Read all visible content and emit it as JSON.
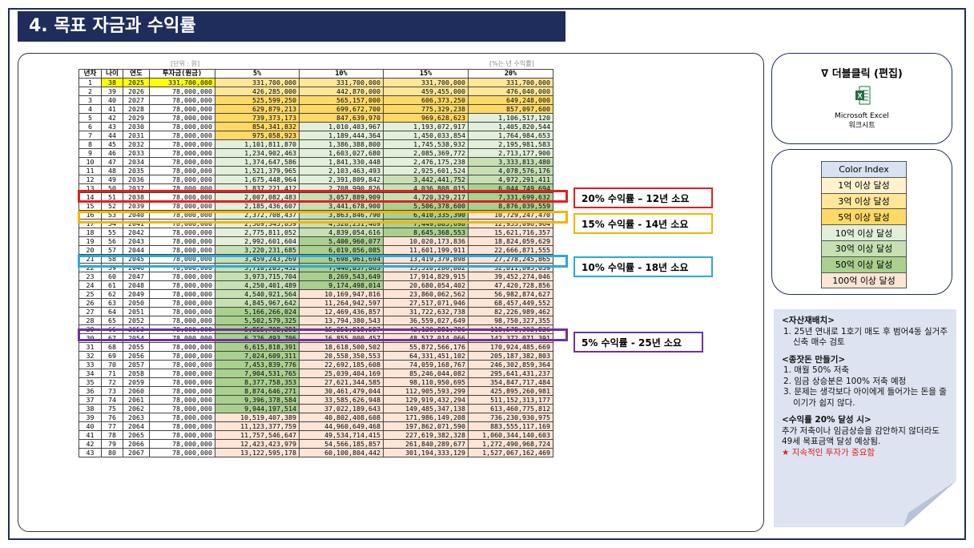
{
  "title": "4. 목표 자금과 수익률",
  "unit_left": "[단위 : 원]",
  "unit_right": "[%는 년 수익률]",
  "headers": [
    "년차",
    "나이",
    "연도",
    "투자금(원금)",
    "5%",
    "10%",
    "15%",
    "20%"
  ],
  "colors": {
    "title_bg": "#1f2d5c",
    "year_yellow": "#ffff00",
    "tier_1": "#fff2cc",
    "tier_3": "#ffe699",
    "tier_5": "#ffd966",
    "tier_10": "#e2efda",
    "tier_30": "#c6e0b4",
    "tier_50": "#a9d08e",
    "tier_100": "#fce4d6",
    "red": "#e02020",
    "orange": "#f4b400",
    "blue": "#2aa8e0",
    "purple": "#7030a0"
  },
  "rows": [
    [
      "1",
      "38",
      "2025",
      "331,700,000",
      "331,700,000",
      "331,700,000",
      "331,700,000",
      "331,700,000"
    ],
    [
      "2",
      "39",
      "2026",
      "78,000,000",
      "426,285,000",
      "442,870,000",
      "459,455,000",
      "476,040,000"
    ],
    [
      "3",
      "40",
      "2027",
      "78,000,000",
      "525,599,250",
      "565,157,000",
      "606,373,250",
      "649,248,000"
    ],
    [
      "4",
      "41",
      "2028",
      "78,000,000",
      "629,879,213",
      "699,672,700",
      "775,329,238",
      "857,097,600"
    ],
    [
      "5",
      "42",
      "2029",
      "78,000,000",
      "739,373,173",
      "847,639,970",
      "969,628,623",
      "1,106,517,120"
    ],
    [
      "6",
      "43",
      "2030",
      "78,000,000",
      "854,341,832",
      "1,010,403,967",
      "1,193,072,917",
      "1,405,820,544"
    ],
    [
      "7",
      "44",
      "2031",
      "78,000,000",
      "975,058,923",
      "1,189,444,364",
      "1,450,033,854",
      "1,764,984,653"
    ],
    [
      "8",
      "45",
      "2032",
      "78,000,000",
      "1,101,811,870",
      "1,386,388,800",
      "1,745,538,932",
      "2,195,981,583"
    ],
    [
      "9",
      "46",
      "2033",
      "78,000,000",
      "1,234,902,463",
      "1,603,027,680",
      "2,085,369,772",
      "2,713,177,900"
    ],
    [
      "10",
      "47",
      "2034",
      "78,000,000",
      "1,374,647,586",
      "1,841,330,448",
      "2,476,175,238",
      "3,333,813,480"
    ],
    [
      "11",
      "48",
      "2035",
      "78,000,000",
      "1,521,379,965",
      "2,103,463,493",
      "2,925,601,524",
      "4,078,576,176"
    ],
    [
      "12",
      "49",
      "2036",
      "78,000,000",
      "1,675,448,964",
      "2,391,809,842",
      "3,442,441,752",
      "4,972,291,411"
    ],
    [
      "13",
      "50",
      "2037",
      "78,000,000",
      "1,837,221,412",
      "2,708,990,826",
      "4,036,808,015",
      "6,044,749,694"
    ],
    [
      "14",
      "51",
      "2038",
      "78,000,000",
      "2,007,082,483",
      "3,057,889,909",
      "4,720,329,217",
      "7,331,699,632"
    ],
    [
      "15",
      "52",
      "2039",
      "78,000,000",
      "2,185,436,607",
      "3,441,678,900",
      "5,506,378,600",
      "8,876,039,559"
    ],
    [
      "16",
      "53",
      "2040",
      "78,000,000",
      "2,372,708,437",
      "3,863,846,790",
      "6,410,335,390",
      "10,729,247,470"
    ],
    [
      "17",
      "54",
      "2041",
      "78,000,000",
      "2,569,343,859",
      "4,328,231,469",
      "7,449,885,698",
      "12,953,096,964"
    ],
    [
      "18",
      "55",
      "2042",
      "78,000,000",
      "2,775,811,052",
      "4,839,054,616",
      "8,645,368,553",
      "15,621,716,357"
    ],
    [
      "19",
      "56",
      "2043",
      "78,000,000",
      "2,992,601,604",
      "5,400,960,077",
      "10,020,173,836",
      "18,824,059,629"
    ],
    [
      "20",
      "57",
      "2044",
      "78,000,000",
      "3,220,231,685",
      "6,019,056,085",
      "11,601,199,911",
      "22,666,871,555"
    ],
    [
      "21",
      "58",
      "2045",
      "78,000,000",
      "3,459,243,269",
      "6,698,961,694",
      "13,419,379,898",
      "27,278,245,865"
    ],
    [
      "22",
      "59",
      "2046",
      "78,000,000",
      "3,710,205,432",
      "7,446,857,863",
      "15,510,286,882",
      "32,811,895,039"
    ],
    [
      "23",
      "60",
      "2047",
      "78,000,000",
      "3,973,715,704",
      "8,269,543,649",
      "17,914,829,915",
      "39,452,274,046"
    ],
    [
      "24",
      "61",
      "2048",
      "78,000,000",
      "4,250,401,489",
      "9,174,498,014",
      "20,680,054,402",
      "47,420,728,856"
    ],
    [
      "25",
      "62",
      "2049",
      "78,000,000",
      "4,540,921,564",
      "10,169,947,816",
      "23,860,062,562",
      "56,982,874,627"
    ],
    [
      "26",
      "63",
      "2050",
      "78,000,000",
      "4,845,967,642",
      "11,264,942,597",
      "27,517,071,946",
      "68,457,449,552"
    ],
    [
      "27",
      "64",
      "2051",
      "78,000,000",
      "5,166,266,024",
      "12,469,436,857",
      "31,722,632,738",
      "82,226,989,462"
    ],
    [
      "28",
      "65",
      "2052",
      "78,000,000",
      "5,502,579,325",
      "13,794,380,543",
      "36,559,027,649",
      "98,750,327,355"
    ],
    [
      "29",
      "66",
      "2053",
      "78,000,000",
      "5,855,708,291",
      "15,251,818,597",
      "42,120,881,796",
      "118,578,392,826"
    ],
    [
      "30",
      "67",
      "2054",
      "78,000,000",
      "6,226,493,706",
      "16,855,000,457",
      "48,517,014,066",
      "142,372,071,391"
    ],
    [
      "31",
      "68",
      "2055",
      "78,000,000",
      "6,615,818,391",
      "18,618,500,502",
      "55,872,566,176",
      "170,924,485,669"
    ],
    [
      "32",
      "69",
      "2056",
      "78,000,000",
      "7,024,609,311",
      "20,558,350,553",
      "64,331,451,102",
      "205,187,382,803"
    ],
    [
      "33",
      "70",
      "2057",
      "78,000,000",
      "7,453,839,776",
      "22,692,185,608",
      "74,059,168,767",
      "246,302,859,364"
    ],
    [
      "34",
      "71",
      "2058",
      "78,000,000",
      "7,904,531,765",
      "25,039,404,169",
      "85,246,044,082",
      "295,641,431,237"
    ],
    [
      "35",
      "72",
      "2059",
      "78,000,000",
      "8,377,758,353",
      "27,621,344,585",
      "98,110,950,695",
      "354,847,717,484"
    ],
    [
      "36",
      "73",
      "2060",
      "78,000,000",
      "8,874,646,271",
      "30,461,479,044",
      "112,905,593,299",
      "425,895,260,981"
    ],
    [
      "37",
      "74",
      "2061",
      "78,000,000",
      "9,396,378,584",
      "33,585,626,948",
      "129,919,432,294",
      "511,152,313,177"
    ],
    [
      "38",
      "75",
      "2062",
      "78,000,000",
      "9,944,197,514",
      "37,022,189,643",
      "149,485,347,138",
      "613,460,775,812"
    ],
    [
      "39",
      "76",
      "2063",
      "78,000,000",
      "10,519,407,389",
      "40,802,408,608",
      "171,986,149,208",
      "736,230,930,975"
    ],
    [
      "40",
      "77",
      "2064",
      "78,000,000",
      "11,123,377,759",
      "44,960,649,468",
      "197,862,071,590",
      "883,555,117,169"
    ],
    [
      "41",
      "78",
      "2065",
      "78,000,000",
      "11,757,546,647",
      "49,534,714,415",
      "227,619,382,328",
      "1,060,344,140,603"
    ],
    [
      "42",
      "79",
      "2066",
      "78,000,000",
      "12,423,423,979",
      "54,566,185,857",
      "261,840,289,677",
      "1,272,490,968,724"
    ],
    [
      "43",
      "80",
      "2067",
      "78,000,000",
      "13,122,595,178",
      "60,100,804,442",
      "301,194,333,129",
      "1,527,067,162,469"
    ]
  ],
  "highlights": [
    {
      "label": "20% 수익률 – 12년 소요"
    },
    {
      "label": "15% 수익률 - 14년 소요"
    },
    {
      "label": "10% 수익률 - 18년 소요"
    },
    {
      "label": "5% 수익률 - 25년 소요"
    }
  ],
  "edit_box": {
    "title": "∇ 더블클릭 (편집)",
    "caption_line1": "Microsoft Excel",
    "caption_line2": "워크시트"
  },
  "color_index": {
    "title": "Color Index",
    "items": [
      "1억 이상 달성",
      "3억 이상 달성",
      "5억 이상 달성",
      "10억 이상 달성",
      "30억 이상 달성",
      "50억 이상 달성",
      "100억 이상 달성"
    ]
  },
  "notes": {
    "h1": "<자산재배치>",
    "n1_1": "1.   25년 연내로 1호기 매도 후 범어4동 실거주 신축 매수 검토",
    "h2": "<종잣돈 만들기>",
    "n2_1": "1.   매월 50% 저축",
    "n2_2": "2.   임금 상승분은 100% 저축 예정",
    "n2_3": "3.   문제는 생각보다 아이에게 들어가는 돈을 줄이기가 쉽지 않다.",
    "h3": "<수익률 20% 달성 시>",
    "p3": "추가 저축이나 임금상승을 감안하지 않더라도 49세 목표금액 달성 예상됨.",
    "p3_red": "★ 지속적인 투자가 중요함"
  }
}
